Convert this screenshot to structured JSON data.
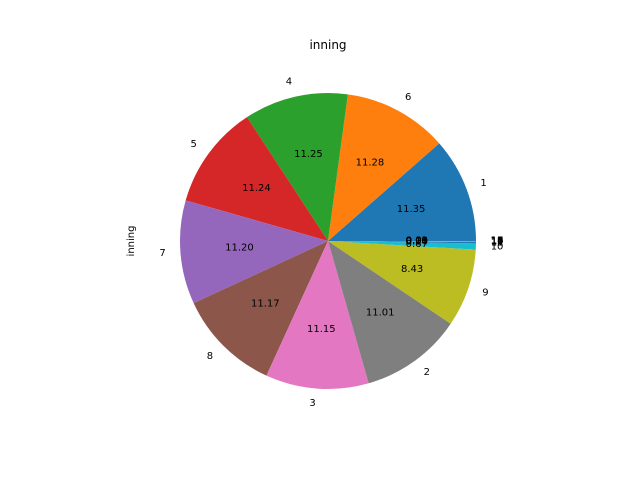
{
  "chart_data": {
    "type": "pie",
    "title": "inning",
    "ylabel": "inning",
    "start_angle_deg": 0,
    "direction": "counterclockwise",
    "autopct_format": "%.2f",
    "slices": [
      {
        "label": "1",
        "value": 11.35,
        "color": "#1f77b4"
      },
      {
        "label": "6",
        "value": 11.28,
        "color": "#ff7f0e"
      },
      {
        "label": "4",
        "value": 11.25,
        "color": "#2ca02c"
      },
      {
        "label": "5",
        "value": 11.24,
        "color": "#d62728"
      },
      {
        "label": "7",
        "value": 11.2,
        "color": "#9467bd"
      },
      {
        "label": "8",
        "value": 11.17,
        "color": "#8c564b"
      },
      {
        "label": "3",
        "value": 11.15,
        "color": "#e377c2"
      },
      {
        "label": "2",
        "value": 11.01,
        "color": "#7f7f7f"
      },
      {
        "label": "9",
        "value": 8.43,
        "color": "#bcbd22"
      },
      {
        "label": "10",
        "value": 0.67,
        "color": "#17becf"
      },
      {
        "label": "11",
        "value": 0.14,
        "color": "#1f77b4"
      },
      {
        "label": "12",
        "value": 0.06,
        "color": "#ff7f0e"
      },
      {
        "label": "13",
        "value": 0.03,
        "color": "#2ca02c"
      },
      {
        "label": "14",
        "value": 0.01,
        "color": "#d62728"
      },
      {
        "label": "15",
        "value": 0.01,
        "color": "#9467bd"
      },
      {
        "label": "16",
        "value": 0.0,
        "color": "#8c564b"
      },
      {
        "label": "17",
        "value": 0.0,
        "color": "#e377c2"
      },
      {
        "label": "18",
        "value": 0.0,
        "color": "#7f7f7f"
      },
      {
        "label": "19",
        "value": 0.0,
        "color": "#bcbd22"
      }
    ]
  }
}
